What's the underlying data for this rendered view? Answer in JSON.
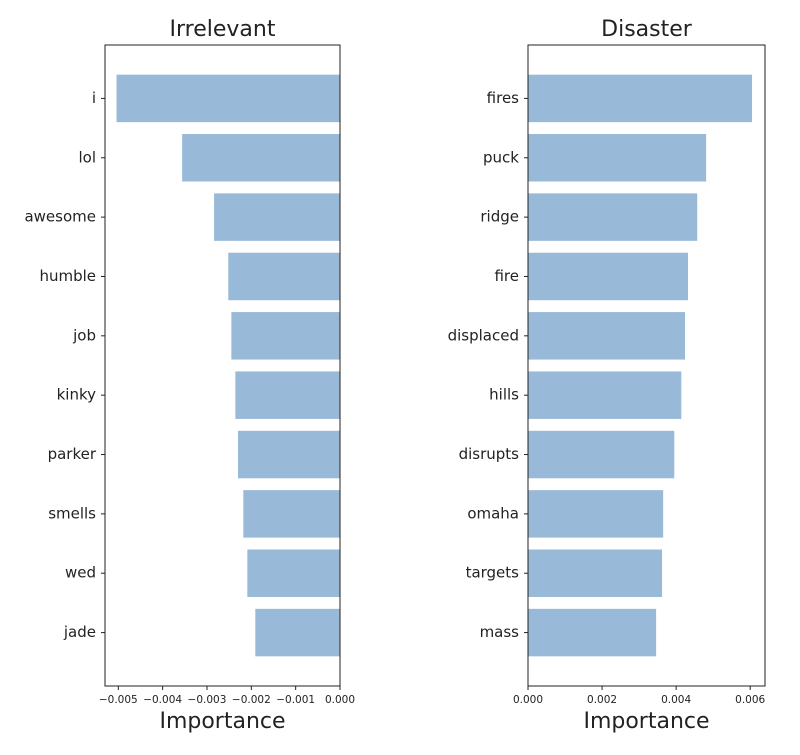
{
  "chart_data": [
    {
      "type": "bar",
      "orientation": "horizontal",
      "title": "Irrelevant",
      "xlabel": "Importance",
      "categories": [
        "i",
        "lol",
        "awesome",
        "humble",
        "job",
        "kinky",
        "parker",
        "smells",
        "wed",
        "jade"
      ],
      "values": [
        -0.00504,
        -0.00356,
        -0.00284,
        -0.00252,
        -0.00245,
        -0.00236,
        -0.0023,
        -0.00218,
        -0.00209,
        -0.00191
      ],
      "color": "#98b9d8",
      "xlim": [
        -0.0053,
        0
      ],
      "xticks": [
        {
          "value": -0.005,
          "label": "−0.005"
        },
        {
          "value": -0.004,
          "label": "−0.004"
        },
        {
          "value": -0.003,
          "label": "−0.003"
        },
        {
          "value": -0.002,
          "label": "−0.002"
        },
        {
          "value": -0.001,
          "label": "−0.001"
        },
        {
          "value": 0,
          "label": "0.000"
        }
      ]
    },
    {
      "type": "bar",
      "orientation": "horizontal",
      "title": "Disaster",
      "xlabel": "Importance",
      "categories": [
        "fires",
        "puck",
        "ridge",
        "fire",
        "displaced",
        "hills",
        "disrupts",
        "omaha",
        "targets",
        "mass"
      ],
      "values": [
        0.00605,
        0.00481,
        0.00457,
        0.00432,
        0.00424,
        0.00414,
        0.00395,
        0.00365,
        0.00362,
        0.00346
      ],
      "color": "#98b9d8",
      "xlim": [
        0,
        0.0064
      ],
      "xticks": [
        {
          "value": 0,
          "label": "0.000"
        },
        {
          "value": 0.002,
          "label": "0.002"
        },
        {
          "value": 0.004,
          "label": "0.004"
        },
        {
          "value": 0.006,
          "label": "0.006"
        }
      ]
    }
  ]
}
